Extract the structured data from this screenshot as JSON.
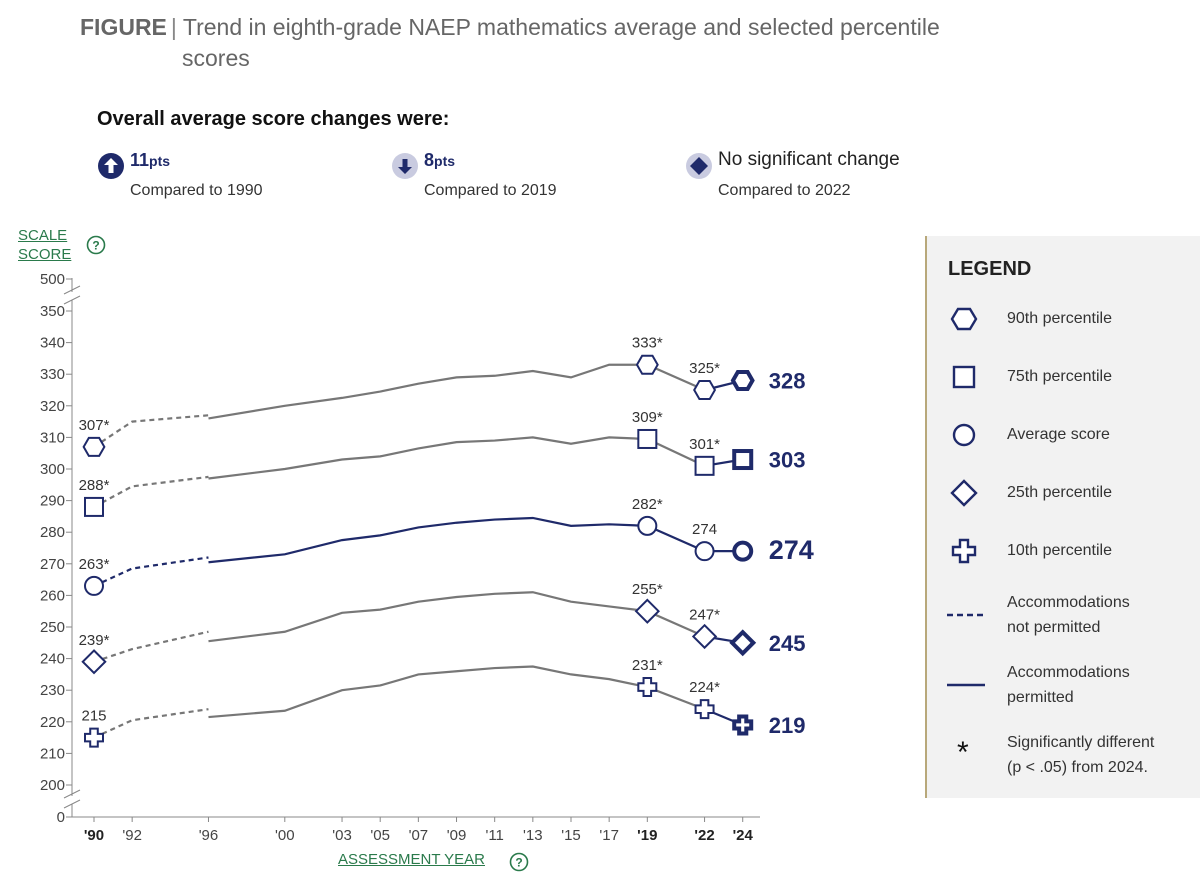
{
  "figure": {
    "label": "FIGURE",
    "separator": "|",
    "title_line1": "Trend in eighth-grade NAEP mathematics average and selected percentile",
    "title_line2": "scores"
  },
  "summary": {
    "heading": "Overall average score changes were:",
    "items": [
      {
        "value": "11",
        "unit": "pts",
        "direction": "up-icon",
        "compared": "Compared to 1990"
      },
      {
        "value": "8",
        "unit": "pts",
        "direction": "down-icon",
        "compared": "Compared to 2019"
      },
      {
        "value": "No significant change",
        "unit": "",
        "direction": "diamond-icon",
        "compared": "Compared to 2022"
      }
    ]
  },
  "axes": {
    "y_title_line1": "SCALE",
    "y_title_line2": "SCORE",
    "x_title": "ASSESSMENT YEAR",
    "help_symbol": "?"
  },
  "legend": {
    "title": "LEGEND",
    "items": [
      {
        "symbol": "hexagon",
        "label": "90th percentile"
      },
      {
        "symbol": "square",
        "label": "75th percentile"
      },
      {
        "symbol": "circle",
        "label": "Average score"
      },
      {
        "symbol": "diamond",
        "label": "25th percentile"
      },
      {
        "symbol": "cross",
        "label": "10th percentile"
      },
      {
        "symbol": "dashed-line",
        "label": "Accommodations\nnot permitted"
      },
      {
        "symbol": "solid-line",
        "label": "Accommodations\npermitted"
      },
      {
        "symbol": "asterisk",
        "label": "Significantly different\n(p < .05) from 2024.",
        "asterisk_char": "*"
      }
    ]
  },
  "colors": {
    "navy": "#1f2a6a",
    "gray": "#777777",
    "green_link": "#2a7a4b",
    "legend_bg": "#f2f2f2"
  },
  "chart_data": {
    "type": "line",
    "x_ticks": [
      {
        "year": 1990,
        "label": "'90",
        "bold": true
      },
      {
        "year": 1992,
        "label": "'92",
        "bold": false
      },
      {
        "year": 1996,
        "label": "'96",
        "bold": false
      },
      {
        "year": 2000,
        "label": "'00",
        "bold": false
      },
      {
        "year": 2003,
        "label": "'03",
        "bold": false
      },
      {
        "year": 2005,
        "label": "'05",
        "bold": false
      },
      {
        "year": 2007,
        "label": "'07",
        "bold": false
      },
      {
        "year": 2009,
        "label": "'09",
        "bold": false
      },
      {
        "year": 2011,
        "label": "'11",
        "bold": false
      },
      {
        "year": 2013,
        "label": "'13",
        "bold": false
      },
      {
        "year": 2015,
        "label": "'15",
        "bold": false
      },
      {
        "year": 2017,
        "label": "'17",
        "bold": false
      },
      {
        "year": 2019,
        "label": "'19",
        "bold": true
      },
      {
        "year": 2022,
        "label": "'22",
        "bold": true
      },
      {
        "year": 2024,
        "label": "'24",
        "bold": true
      }
    ],
    "y_ticks": [
      0,
      200,
      210,
      220,
      230,
      240,
      250,
      260,
      270,
      280,
      290,
      300,
      310,
      320,
      330,
      340,
      350,
      500
    ],
    "y_axis_break": "broken axis between 0 and 200 and between 350 and 500",
    "series": [
      {
        "name": "90th percentile",
        "marker": "hexagon",
        "nonacc": [
          [
            1990,
            307
          ],
          [
            1992,
            315
          ],
          [
            1996,
            317
          ]
        ],
        "acc": [
          [
            1996,
            316
          ],
          [
            2000,
            320
          ],
          [
            2003,
            322.5
          ],
          [
            2005,
            324.5
          ],
          [
            2007,
            327
          ],
          [
            2009,
            329
          ],
          [
            2011,
            329.5
          ],
          [
            2013,
            331
          ],
          [
            2015,
            329
          ],
          [
            2017,
            333
          ],
          [
            2019,
            333
          ],
          [
            2022,
            325
          ],
          [
            2024,
            328
          ]
        ],
        "labels": [
          {
            "year": 1990,
            "text": "307*"
          },
          {
            "year": 2019,
            "text": "333*"
          },
          {
            "year": 2022,
            "text": "325*"
          }
        ],
        "final_label": "328"
      },
      {
        "name": "75th percentile",
        "marker": "square",
        "nonacc": [
          [
            1990,
            288
          ],
          [
            1992,
            294.5
          ],
          [
            1996,
            297.5
          ]
        ],
        "acc": [
          [
            1996,
            297
          ],
          [
            2000,
            300
          ],
          [
            2003,
            303
          ],
          [
            2005,
            304
          ],
          [
            2007,
            306.5
          ],
          [
            2009,
            308.5
          ],
          [
            2011,
            309
          ],
          [
            2013,
            310
          ],
          [
            2015,
            308
          ],
          [
            2017,
            310
          ],
          [
            2019,
            309.5
          ],
          [
            2022,
            301
          ],
          [
            2024,
            303
          ]
        ],
        "labels": [
          {
            "year": 1990,
            "text": "288*"
          },
          {
            "year": 2019,
            "text": "309*"
          },
          {
            "year": 2022,
            "text": "301*"
          }
        ],
        "final_label": "303"
      },
      {
        "name": "Average score",
        "marker": "circle",
        "nonacc": [
          [
            1990,
            263
          ],
          [
            1992,
            268.5
          ],
          [
            1996,
            272
          ]
        ],
        "acc": [
          [
            1996,
            270.5
          ],
          [
            2000,
            273
          ],
          [
            2003,
            277.5
          ],
          [
            2005,
            279
          ],
          [
            2007,
            281.5
          ],
          [
            2009,
            283
          ],
          [
            2011,
            284
          ],
          [
            2013,
            284.5
          ],
          [
            2015,
            282
          ],
          [
            2017,
            282.5
          ],
          [
            2019,
            282
          ],
          [
            2022,
            274
          ],
          [
            2024,
            274
          ]
        ],
        "labels": [
          {
            "year": 1990,
            "text": "263*"
          },
          {
            "year": 2019,
            "text": "282*"
          },
          {
            "year": 2022,
            "text": "274"
          }
        ],
        "final_label": "274"
      },
      {
        "name": "25th percentile",
        "marker": "diamond",
        "nonacc": [
          [
            1990,
            239
          ],
          [
            1992,
            243
          ],
          [
            1996,
            248.5
          ]
        ],
        "acc": [
          [
            1996,
            245.5
          ],
          [
            2000,
            248.5
          ],
          [
            2003,
            254.5
          ],
          [
            2005,
            255.5
          ],
          [
            2007,
            258
          ],
          [
            2009,
            259.5
          ],
          [
            2011,
            260.5
          ],
          [
            2013,
            261
          ],
          [
            2015,
            258
          ],
          [
            2017,
            256.5
          ],
          [
            2019,
            255
          ],
          [
            2022,
            247
          ],
          [
            2024,
            245
          ]
        ],
        "labels": [
          {
            "year": 1990,
            "text": "239*"
          },
          {
            "year": 2019,
            "text": "255*"
          },
          {
            "year": 2022,
            "text": "247*"
          }
        ],
        "final_label": "245"
      },
      {
        "name": "10th percentile",
        "marker": "cross",
        "nonacc": [
          [
            1990,
            215
          ],
          [
            1992,
            220.5
          ],
          [
            1996,
            224
          ]
        ],
        "acc": [
          [
            1996,
            221.5
          ],
          [
            2000,
            223.5
          ],
          [
            2003,
            230
          ],
          [
            2005,
            231.5
          ],
          [
            2007,
            235
          ],
          [
            2009,
            236
          ],
          [
            2011,
            237
          ],
          [
            2013,
            237.5
          ],
          [
            2015,
            235
          ],
          [
            2017,
            233.5
          ],
          [
            2019,
            231
          ],
          [
            2022,
            224
          ],
          [
            2024,
            219
          ]
        ],
        "labels": [
          {
            "year": 1990,
            "text": "215"
          },
          {
            "year": 2019,
            "text": "231*"
          },
          {
            "year": 2022,
            "text": "224*"
          }
        ],
        "final_label": "219"
      }
    ]
  }
}
